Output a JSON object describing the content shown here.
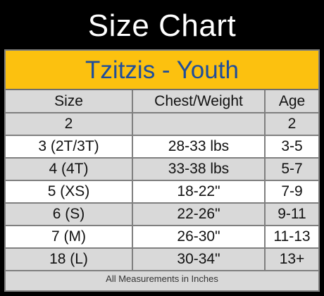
{
  "title": "Size Chart",
  "subtitle": "Tzitzis - Youth",
  "columns": [
    "Size",
    "Chest/Weight",
    "Age"
  ],
  "rows": [
    [
      "2",
      "",
      "2"
    ],
    [
      "3  (2T/3T)",
      "28-33 lbs",
      "3-5"
    ],
    [
      "4 (4T)",
      "33-38 lbs",
      "5-7"
    ],
    [
      "5 (XS)",
      "18-22\"",
      "7-9"
    ],
    [
      "6 (S)",
      "22-26\"",
      "9-11"
    ],
    [
      "7 (M)",
      "26-30\"",
      "11-13"
    ],
    [
      "18 (L)",
      "30-34\"",
      "13+"
    ]
  ],
  "footer": "All Measurements in Inches",
  "colors": {
    "background": "#000000",
    "header_band": "#fcc10f",
    "subtitle_text": "#1f4e9b",
    "row_gray": "#d9d9d9",
    "row_white": "#ffffff"
  }
}
